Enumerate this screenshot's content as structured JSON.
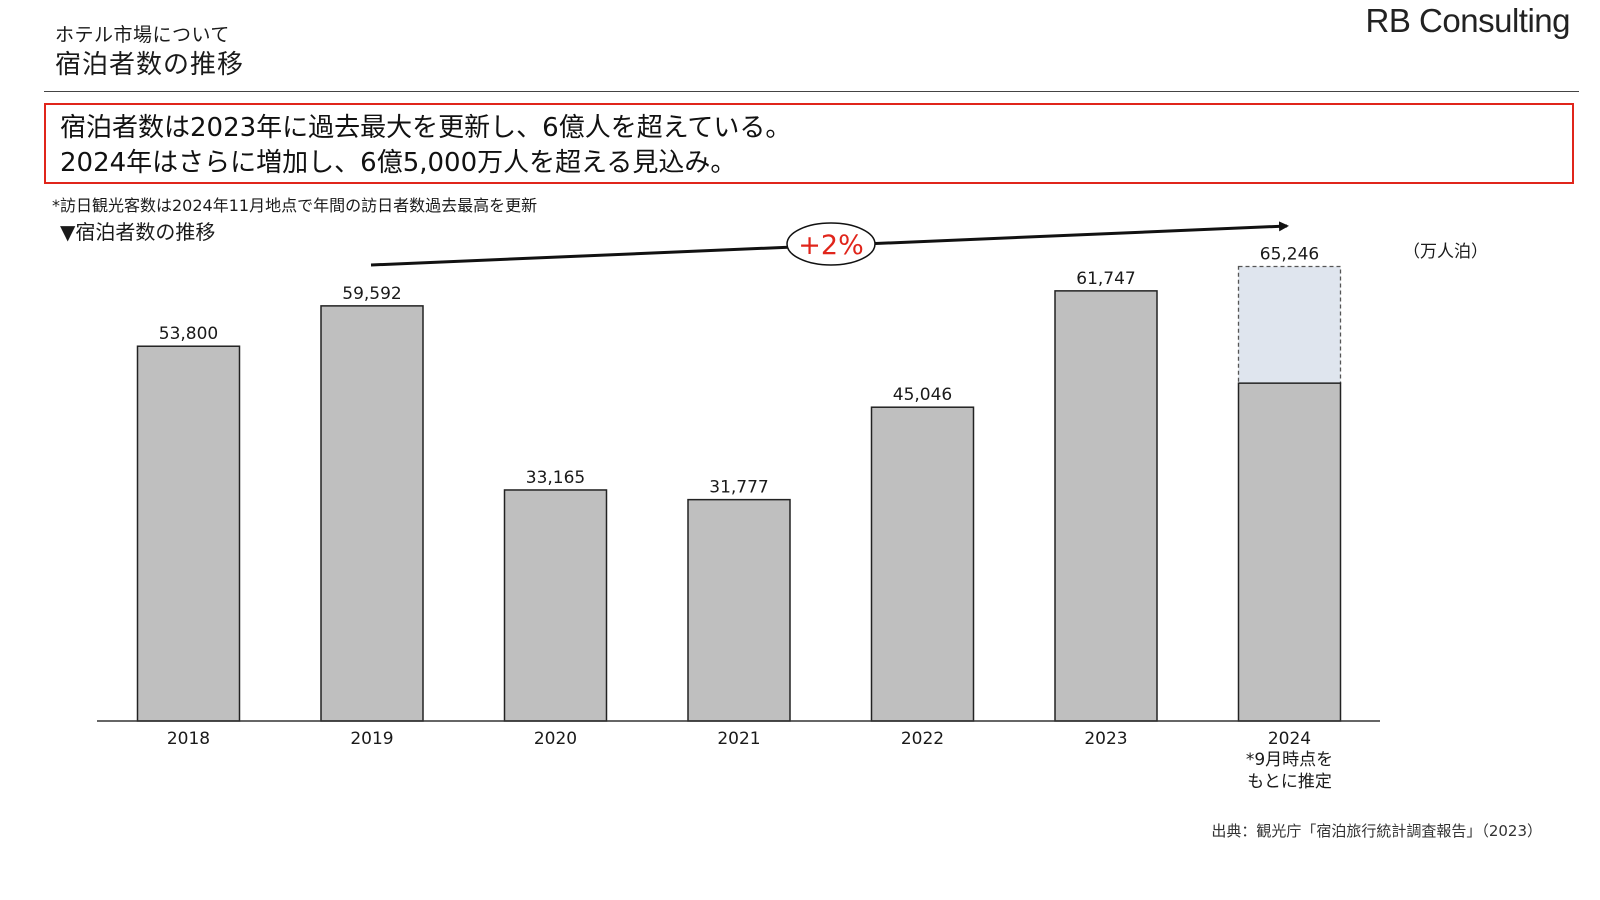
{
  "header": {
    "subtitle": "ホテル市場について",
    "title": "宿泊者数の推移",
    "logo": "RB Consulting"
  },
  "summary": {
    "line1": "宿泊者数は2023年に過去最大を更新し、6億人を超えている。",
    "line2": "2024年はさらに増加し、6億5,000万人を超える見込み。"
  },
  "note": "*訪日観光客数は2024年11月地点で年間の訪日者数過去最高を更新",
  "chart_heading": "▼宿泊者数の推移",
  "unit": "（万人泊）",
  "source": "出典：観光庁「宿泊旅行統計調査報告」（2023）",
  "growth_label": "+2%",
  "colors": {
    "bar_fill": "#bfbfbf",
    "estimate_fill": "#dfe5ee",
    "accent_red": "#e0251b"
  },
  "chart_data": {
    "type": "bar",
    "categories": [
      "2018",
      "2019",
      "2020",
      "2021",
      "2022",
      "2023",
      "2024"
    ],
    "values": [
      53800,
      59592,
      33165,
      31777,
      45046,
      61747,
      65246
    ],
    "value_labels": [
      "53,800",
      "59,592",
      "33,165",
      "31,777",
      "45,046",
      "61,747",
      "65,246"
    ],
    "actual_2024": 48500,
    "estimated_index": 6,
    "category_note": [
      "*9月時点を",
      "もとに推定"
    ],
    "ylim": [
      0,
      70000
    ],
    "grid": false,
    "xlabel": "",
    "ylabel": ""
  }
}
